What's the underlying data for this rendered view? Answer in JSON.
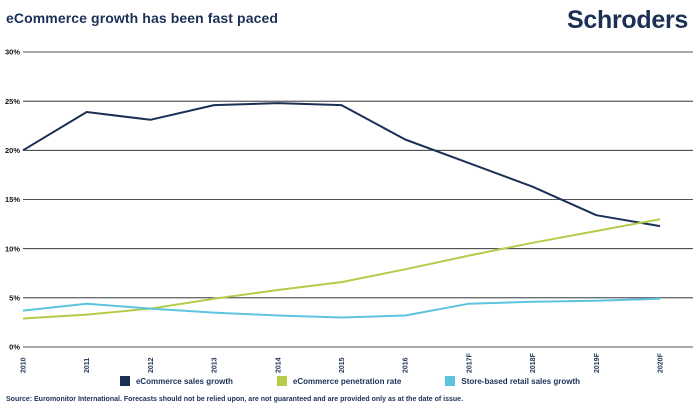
{
  "header": {
    "title": "eCommerce growth has been fast paced",
    "logo": "Schroders"
  },
  "chart_data": {
    "type": "line",
    "title": "eCommerce growth has been fast paced",
    "categories": [
      "2010",
      "2011",
      "2012",
      "2013",
      "2014",
      "2015",
      "2016",
      "2017F",
      "2018F",
      "2019F",
      "2020F"
    ],
    "series": [
      {
        "name": "eCommerce sales growth",
        "color": "#1c3056",
        "values": [
          20.0,
          23.9,
          23.1,
          24.6,
          24.8,
          24.6,
          21.1,
          18.7,
          16.3,
          13.4,
          12.3
        ]
      },
      {
        "name": "eCommerce penetration rate",
        "color": "#b5cc4a",
        "values": [
          2.9,
          3.3,
          3.9,
          4.9,
          5.8,
          6.6,
          7.9,
          9.3,
          10.6,
          11.8,
          13.0
        ]
      },
      {
        "name": "Store-based retail sales growth",
        "color": "#5cc5dd",
        "values": [
          3.7,
          4.4,
          3.9,
          3.5,
          3.2,
          3.0,
          3.2,
          4.4,
          4.6,
          4.7,
          4.9
        ]
      }
    ],
    "xlabel": "",
    "ylabel": "",
    "ylim": [
      0,
      30
    ],
    "yticks": [
      0,
      5,
      10,
      15,
      20,
      25,
      30
    ],
    "ytick_suffix": "%",
    "grid": true,
    "legend_position": "bottom",
    "colors": {
      "grid": "#16191e",
      "ytick_text": "#101418",
      "xtick_text": "#1c3056"
    }
  },
  "footer": {
    "source": "Source: Euromonitor International. Forecasts should not be relied upon, are not guaranteed and are provided only as at the date of issue."
  }
}
